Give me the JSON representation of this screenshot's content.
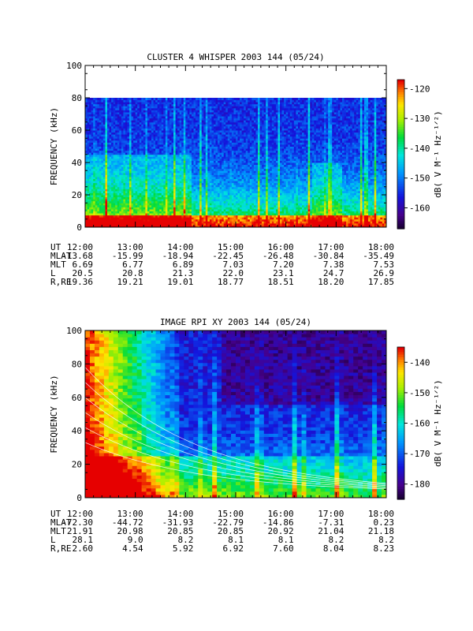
{
  "chart_data": [
    {
      "type": "heatmap",
      "title": "CLUSTER 4 WHISPER 2003 144 (05/24)",
      "ylabel": "FREQUENCY (kHz)",
      "colorbar_label": "dB( V M⁻¹ Hz⁻¹ᐟ²)",
      "ylim": [
        0,
        100
      ],
      "data_ylim": [
        0,
        80
      ],
      "y_ticks": [
        "0",
        "20",
        "40",
        "60",
        "80",
        "100"
      ],
      "colorbar_range": [
        -167,
        -117
      ],
      "colorbar_ticks": [
        "-120",
        "-130",
        "-140",
        "-150",
        "-160"
      ],
      "x_ticks": [
        "12:00",
        "13:00",
        "14:00",
        "15:00",
        "16:00",
        "17:00",
        "18:00"
      ],
      "ephemeris": [
        {
          "label": "UT",
          "values": [
            "12:00",
            "13:00",
            "14:00",
            "15:00",
            "16:00",
            "17:00",
            "18:00"
          ]
        },
        {
          "label": "MLAT",
          "values": [
            "-13.68",
            "-15.99",
            "-18.94",
            "-22.45",
            "-26.48",
            "-30.84",
            "-35.49"
          ]
        },
        {
          "label": "MLT",
          "values": [
            "6.69",
            "6.77",
            "6.89",
            "7.03",
            "7.20",
            "7.38",
            "7.53"
          ]
        },
        {
          "label": "L",
          "values": [
            "20.5",
            "20.8",
            "21.3",
            "22.0",
            "23.1",
            "24.7",
            "26.9"
          ]
        },
        {
          "label": "R,RE",
          "values": [
            "19.36",
            "19.21",
            "19.01",
            "18.77",
            "18.51",
            "18.20",
            "17.85"
          ]
        }
      ]
    },
    {
      "type": "heatmap",
      "title": "IMAGE RPI XY 2003 144 (05/24)",
      "ylabel": "FREQUENCY (kHz)",
      "colorbar_label": "dB( V M⁻¹ Hz⁻¹ᐟ²)",
      "ylim": [
        0,
        100
      ],
      "y_ticks": [
        "0",
        "20",
        "40",
        "60",
        "80",
        "100"
      ],
      "colorbar_range": [
        -185,
        -135
      ],
      "colorbar_ticks": [
        "-140",
        "-150",
        "-160",
        "-170",
        "-180"
      ],
      "x_ticks": [
        "12:00",
        "13:00",
        "14:00",
        "15:00",
        "16:00",
        "17:00",
        "18:00"
      ],
      "ephemeris": [
        {
          "label": "UT",
          "values": [
            "12:00",
            "13:00",
            "14:00",
            "15:00",
            "16:00",
            "17:00",
            "18:00"
          ]
        },
        {
          "label": "MLAT",
          "values": [
            "-72.30",
            "-44.72",
            "-31.93",
            "-22.79",
            "-14.86",
            "-7.31",
            "0.23"
          ]
        },
        {
          "label": "MLT",
          "values": [
            "21.91",
            "20.98",
            "20.85",
            "20.85",
            "20.92",
            "21.04",
            "21.18"
          ]
        },
        {
          "label": "L",
          "values": [
            "28.1",
            "9.0",
            "8.2",
            "8.1",
            "8.1",
            "8.2",
            "8.2"
          ]
        },
        {
          "label": "R,RE",
          "values": [
            "2.60",
            "4.54",
            "5.92",
            "6.92",
            "7.60",
            "8.04",
            "8.23"
          ]
        }
      ]
    }
  ]
}
